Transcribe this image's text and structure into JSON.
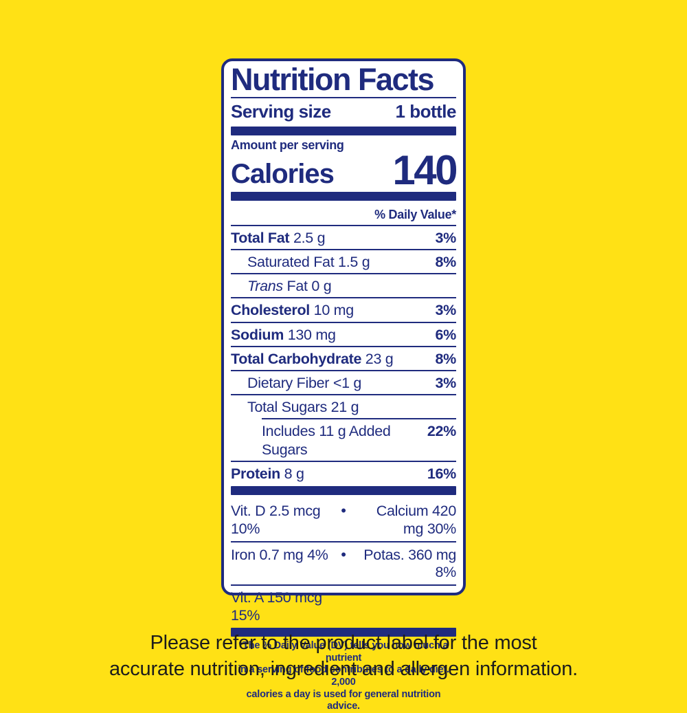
{
  "colors": {
    "background": "#FFE115",
    "label_blue": "#1F2B7E",
    "panel_background": "#FFFFFF",
    "caption_text": "#1C1C1C"
  },
  "label": {
    "title": "Nutrition Facts",
    "serving_size_label": "Serving size",
    "serving_size_value": "1 bottle",
    "amount_per_serving": "Amount per serving",
    "calories_label": "Calories",
    "calories_value": "140",
    "daily_value_header": "% Daily Value*",
    "rows": [
      {
        "name": "Total Fat",
        "amount": "2.5 g",
        "dv": "3%",
        "style": "main"
      },
      {
        "name": "Saturated Fat",
        "amount": "1.5 g",
        "dv": "8%",
        "style": "sub"
      },
      {
        "italic_prefix": "Trans",
        "name": "Fat",
        "amount": "0 g",
        "dv": "",
        "style": "sub"
      },
      {
        "name": "Cholesterol",
        "amount": "10 mg",
        "dv": "3%",
        "style": "main"
      },
      {
        "name": "Sodium",
        "amount": "130 mg",
        "dv": "6%",
        "style": "main"
      },
      {
        "name": "Total Carbohydrate",
        "amount": "23 g",
        "dv": "8%",
        "style": "main"
      },
      {
        "name": "Dietary Fiber",
        "amount": "<1 g",
        "dv": "3%",
        "style": "sub"
      },
      {
        "name": "Total Sugars",
        "amount": "21 g",
        "dv": "",
        "style": "sub"
      },
      {
        "name": "Includes 11 g Added Sugars",
        "amount": "",
        "dv": "22%",
        "style": "sub2"
      },
      {
        "name": "Protein",
        "amount": "8 g",
        "dv": "16%",
        "style": "main"
      }
    ],
    "micronutrients": [
      {
        "left": "Vit. D 2.5 mcg 10%",
        "bullet": "•",
        "right": "Calcium 420 mg 30%"
      },
      {
        "left": "Iron 0.7 mg 4%",
        "bullet": "•",
        "right": "Potas. 360 mg 8%"
      },
      {
        "left": "Vit. A 150 mcg 15%",
        "bullet": "",
        "right": ""
      }
    ],
    "footnote_lines": [
      "*The % Daily Value (DV) tells you how much a nutrient",
      "in a serving of food contributes to a daily diet. 2,000",
      "calories a day is used for general nutrition advice."
    ]
  },
  "caption": {
    "line1": "Please refer to the product label for the most",
    "line2": "accurate nutrition, ingredient and allergen information."
  }
}
